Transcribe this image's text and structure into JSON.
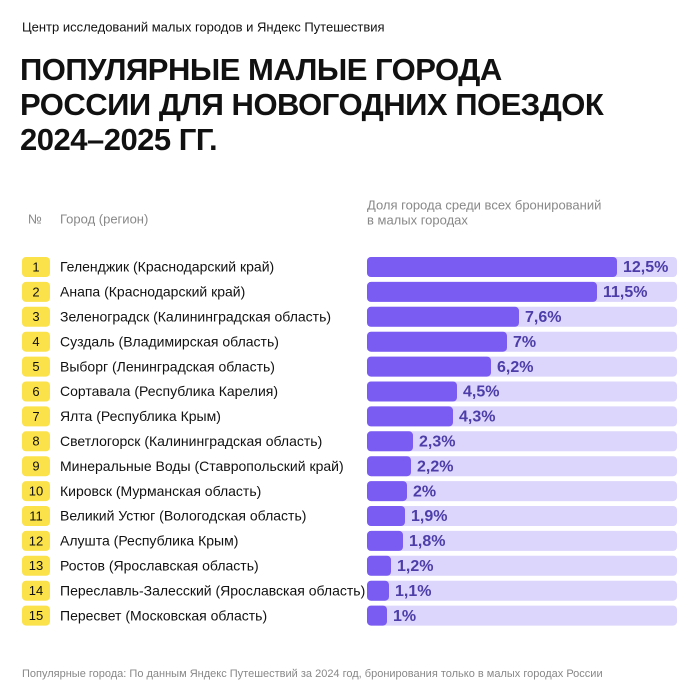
{
  "chart_data": {
    "type": "bar",
    "source": "Центр исследований малых городов и Яндекс Путешествия",
    "title_lines": [
      "ПОПУЛЯРНЫЕ МАЛЫЕ ГОРОДА",
      "РОССИИ ДЛЯ НОВОГОДНИХ ПОЕЗДОК",
      "2024–2025 ГГ."
    ],
    "rank_header": "№",
    "category_header": "Город (регион)",
    "value_header_lines": [
      "Доля города среди всех бронирований",
      "в малых городах"
    ],
    "ranks": [
      1,
      2,
      3,
      4,
      5,
      6,
      7,
      8,
      9,
      10,
      11,
      12,
      13,
      14,
      15
    ],
    "categories": [
      "Геленджик (Краснодарский край)",
      "Анапа (Краснодарский край)",
      "Зеленоградск (Калининградская область)",
      "Суздаль (Владимирская область)",
      "Выборг (Ленинградская область)",
      "Сортавала (Республика Карелия)",
      "Ялта (Республика Крым)",
      "Светлогорск (Калининградская область)",
      "Минеральные Воды (Ставропольский край)",
      "Кировск (Мурманская область)",
      "Великий Устюг (Вологодская область)",
      "Алушта (Республика Крым)",
      "Ростов (Ярославская область)",
      "Переславль-Залесский (Ярославская область)",
      "Пересвет (Московская область)"
    ],
    "values": [
      12.5,
      11.5,
      7.6,
      7,
      6.2,
      4.5,
      4.3,
      2.3,
      2.2,
      2,
      1.9,
      1.8,
      1.2,
      1.1,
      1
    ],
    "value_labels": [
      "12,5%",
      "11,5%",
      "7,6%",
      "7%",
      "6,2%",
      "4,5%",
      "4,3%",
      "2,3%",
      "2,2%",
      "2%",
      "1,9%",
      "1,8%",
      "1,2%",
      "1,1%",
      "1%"
    ],
    "xlim": [
      0,
      15.5
    ],
    "color": "#7b5cf2",
    "track_color": "#dcd5fc",
    "rank_color": "#fbe24b",
    "footnote": "Популярные города: По данным Яндекс Путешествий за 2024 год, бронирования только в малых городах России"
  }
}
